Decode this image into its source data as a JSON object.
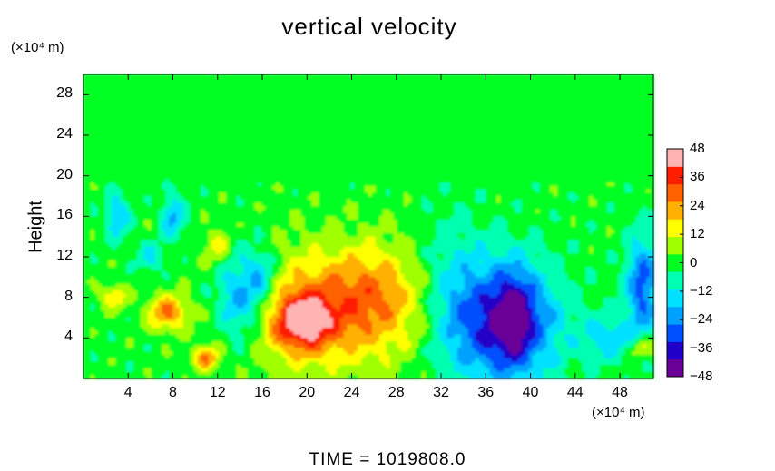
{
  "chart_data": {
    "type": "heatmap",
    "title": "vertical velocity",
    "ylabel": "Height",
    "x_unit": "(×10⁴ m)",
    "y_unit": "(×10⁴ m)",
    "footer": "TIME = 1019808.0",
    "xlim": [
      0,
      51
    ],
    "ylim": [
      0,
      30
    ],
    "x_ticks": [
      "4",
      "8",
      "12",
      "16",
      "20",
      "24",
      "28",
      "32",
      "36",
      "40",
      "44",
      "48"
    ],
    "x_tick_values": [
      4,
      8,
      12,
      16,
      20,
      24,
      28,
      32,
      36,
      40,
      44,
      48
    ],
    "y_ticks": [
      "4",
      "8",
      "12",
      "16",
      "20",
      "24",
      "28"
    ],
    "y_tick_values": [
      4,
      8,
      12,
      16,
      20,
      24,
      28
    ],
    "colorbar": {
      "range": [
        -48,
        48
      ],
      "ticks": [
        "48",
        "36",
        "24",
        "12",
        "0",
        "−12",
        "−24",
        "−36",
        "−48"
      ],
      "tick_values": [
        48,
        36,
        24,
        12,
        0,
        -12,
        -24,
        -36,
        -48
      ]
    },
    "features": [
      {
        "kind": "updraft",
        "x": 23,
        "y": 7,
        "sx": 5.5,
        "sy": 4,
        "peak": 30
      },
      {
        "kind": "updraft",
        "x": 19.5,
        "y": 5.5,
        "sx": 1.8,
        "sy": 2,
        "peak": 35
      },
      {
        "kind": "updraft",
        "x": 26,
        "y": 9,
        "sx": 2.5,
        "sy": 3,
        "peak": 8
      },
      {
        "kind": "updraft",
        "x": 7.5,
        "y": 6.5,
        "sx": 1.2,
        "sy": 1.2,
        "peak": 30
      },
      {
        "kind": "updraft",
        "x": 2.7,
        "y": 8,
        "sx": 0.8,
        "sy": 0.8,
        "peak": 20
      },
      {
        "kind": "updraft",
        "x": 11,
        "y": 2,
        "sx": 0.8,
        "sy": 0.8,
        "peak": 28
      },
      {
        "kind": "updraft",
        "x": 12,
        "y": 13,
        "sx": 0.8,
        "sy": 1.2,
        "peak": 15
      },
      {
        "kind": "updraft",
        "x": 50,
        "y": 3,
        "sx": 0.8,
        "sy": 0.8,
        "peak": 20
      },
      {
        "kind": "downdraft",
        "x": 37.5,
        "y": 5.5,
        "sx": 3.5,
        "sy": 4,
        "peak": -40
      },
      {
        "kind": "downdraft",
        "x": 38.5,
        "y": 6,
        "sx": 1.3,
        "sy": 3.5,
        "peak": -20
      },
      {
        "kind": "downdraft",
        "x": 14,
        "y": 8,
        "sx": 1.5,
        "sy": 3,
        "peak": -26
      },
      {
        "kind": "downdraft",
        "x": 16,
        "y": 10,
        "sx": 1,
        "sy": 2,
        "peak": -18
      },
      {
        "kind": "downdraft",
        "x": 3,
        "y": 16,
        "sx": 0.7,
        "sy": 1.5,
        "peak": -22
      },
      {
        "kind": "downdraft",
        "x": 8,
        "y": 16,
        "sx": 0.7,
        "sy": 1.5,
        "peak": -22
      },
      {
        "kind": "downdraft",
        "x": 6,
        "y": 12,
        "sx": 0.8,
        "sy": 1,
        "peak": -14
      },
      {
        "kind": "downdraft",
        "x": 50,
        "y": 9,
        "sx": 1,
        "sy": 3.5,
        "peak": -32
      },
      {
        "kind": "downdraft",
        "x": 47,
        "y": 4,
        "sx": 1.5,
        "sy": 1.5,
        "peak": -18
      },
      {
        "kind": "downdraft",
        "x": 33,
        "y": 9,
        "sx": 2,
        "sy": 5,
        "peak": -12
      }
    ]
  },
  "colors": {
    "scale": [
      "#6a0096",
      "#2000c8",
      "#0050ff",
      "#00a0ff",
      "#00e0ff",
      "#00ffb0",
      "#00ff20",
      "#a0ff00",
      "#ffff00",
      "#ffb000",
      "#ff6000",
      "#ff1e00",
      "#ffb4b4"
    ],
    "background": "#ffffff"
  }
}
